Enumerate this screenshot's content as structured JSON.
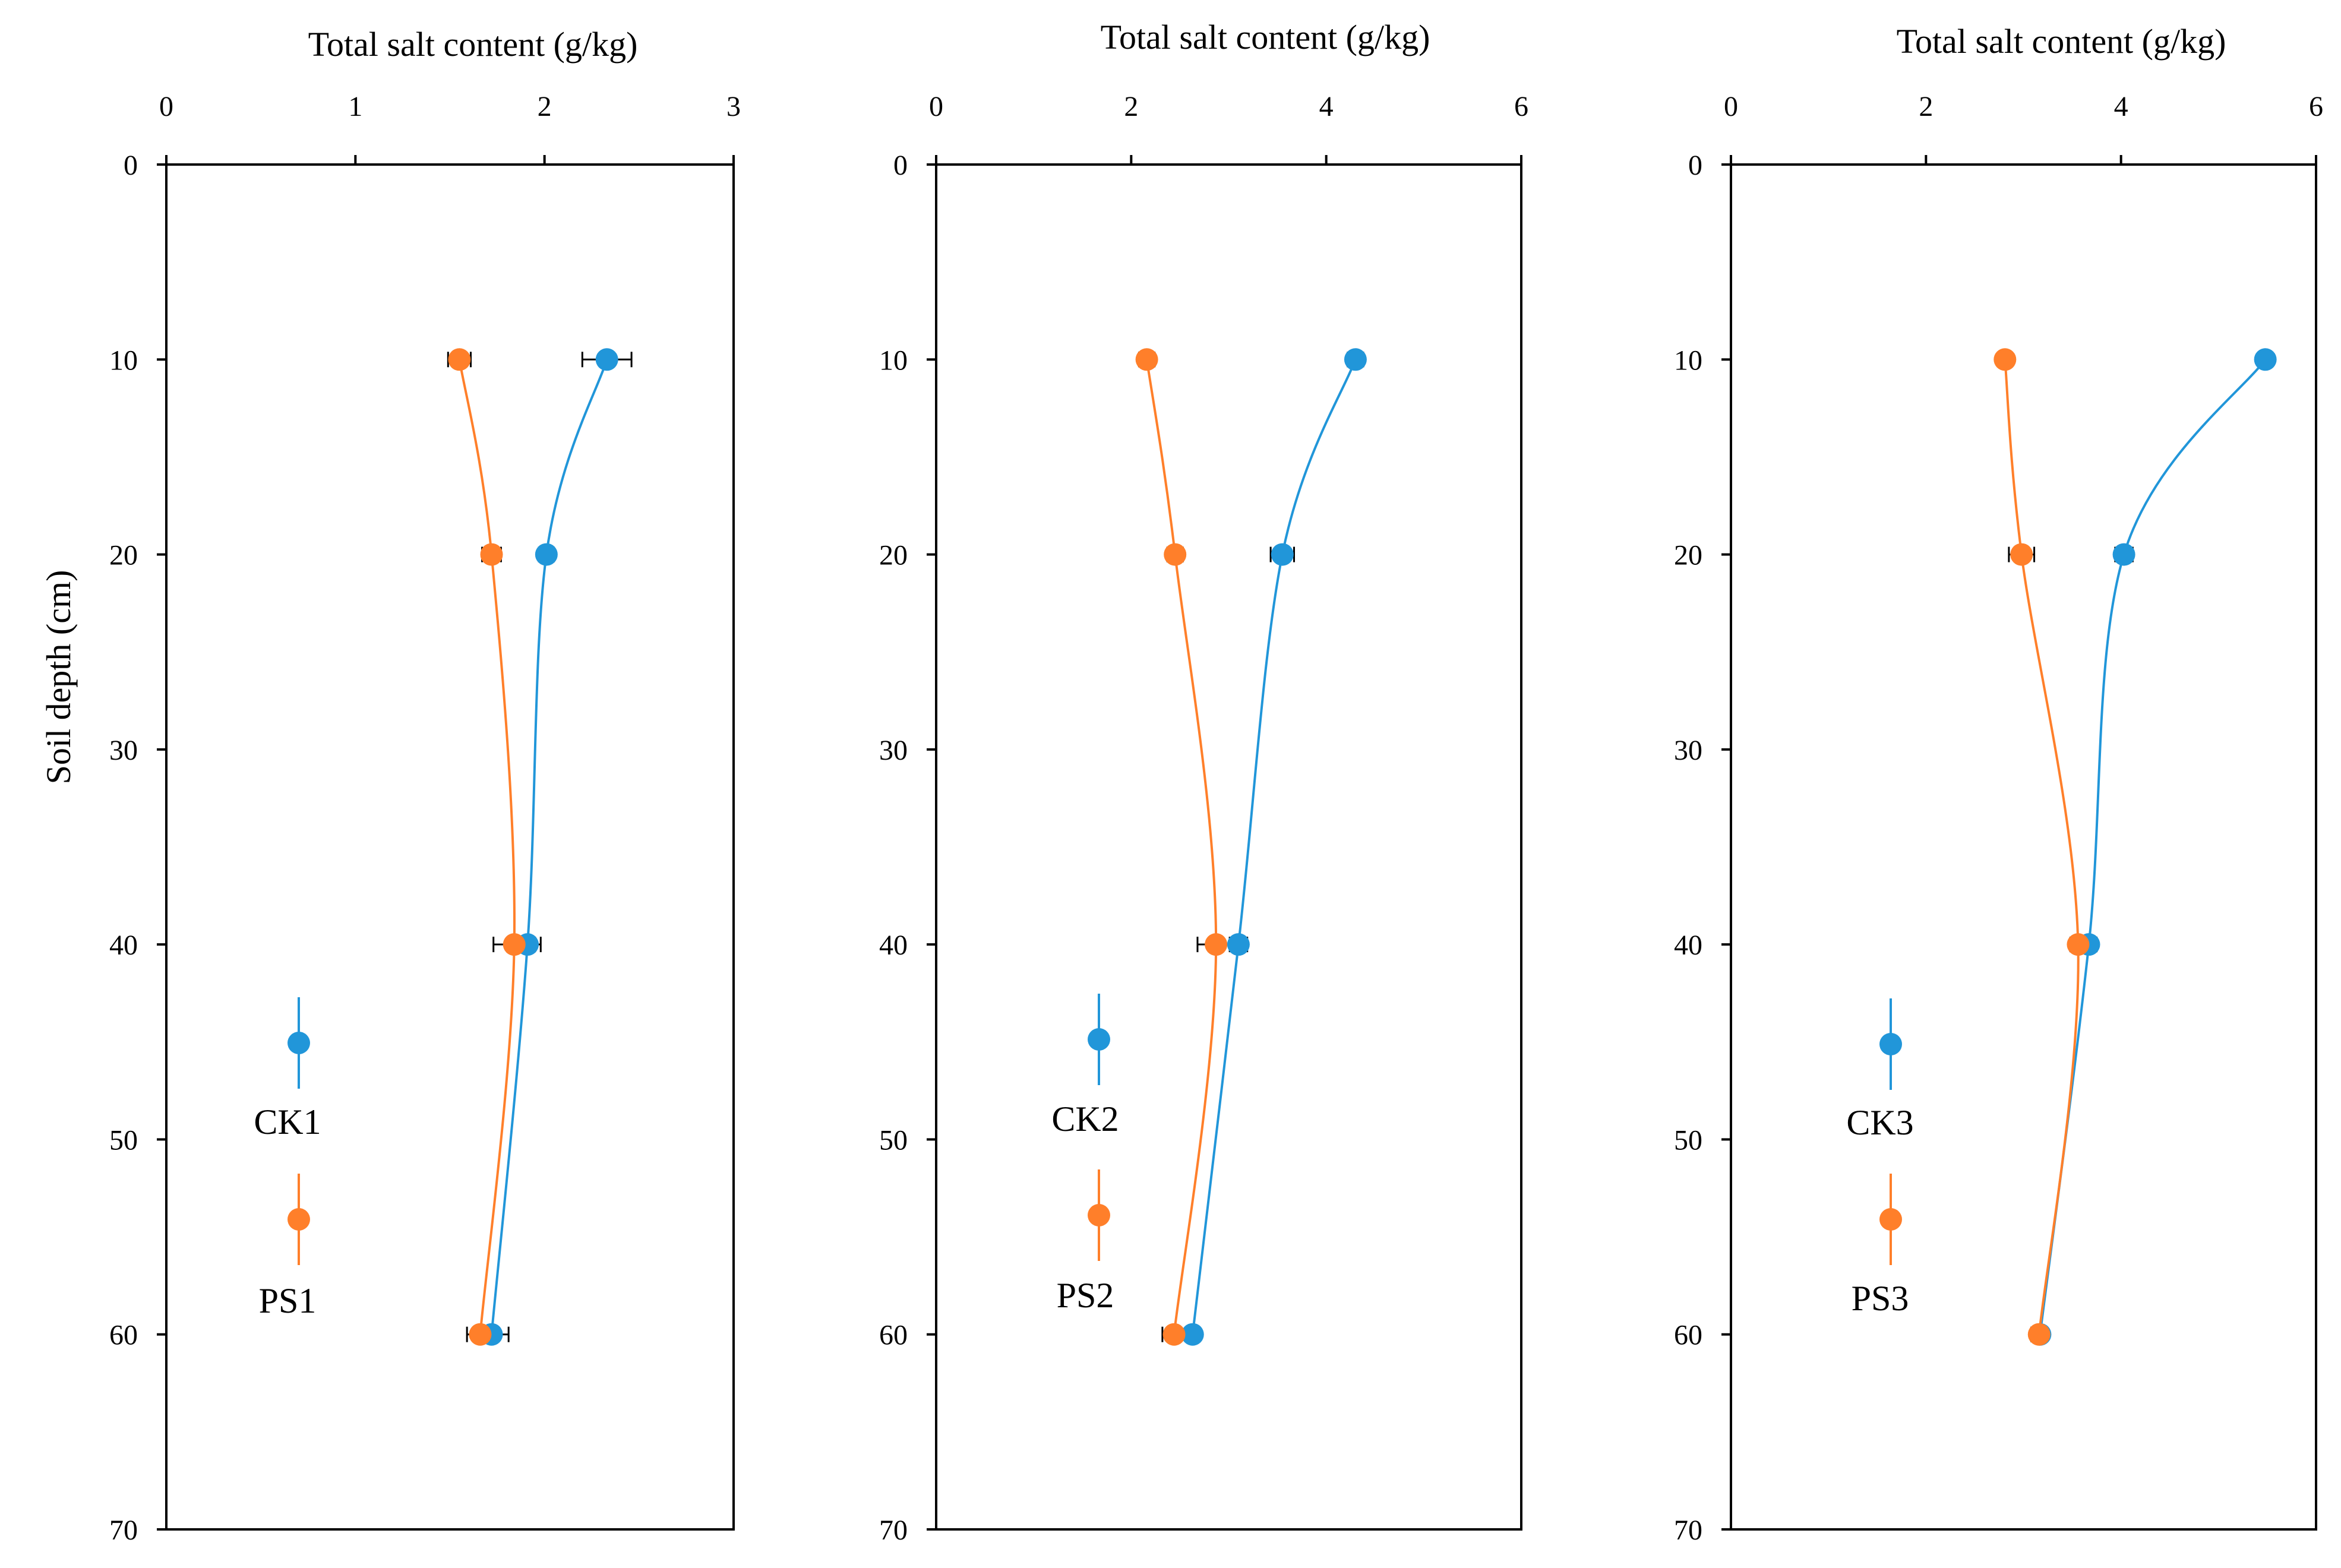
{
  "figure": {
    "y_axis_title": "Soil depth (cm)"
  },
  "colors": {
    "CK": "#2196d9",
    "PS": "#ff7f2a",
    "axis": "#000000",
    "errorbar": "#000000"
  },
  "chart_data": [
    {
      "type": "line",
      "title": "",
      "xlabel": "Total salt content (g/kg)",
      "ylabel": "Soil depth (cm)",
      "xlim": [
        0,
        3
      ],
      "ylim": [
        0,
        70
      ],
      "x_ticks": [
        "0",
        "1",
        "2",
        "3"
      ],
      "y_ticks": [
        "0",
        "10",
        "20",
        "30",
        "40",
        "50",
        "60",
        "70"
      ],
      "depths": [
        10,
        20,
        40,
        60
      ],
      "series": [
        {
          "name": "CK1",
          "key": "CK",
          "values": [
            2.33,
            2.01,
            1.91,
            1.72
          ],
          "errors": [
            0.13,
            0.04,
            0.07,
            0.09
          ]
        },
        {
          "name": "PS1",
          "key": "PS",
          "values": [
            1.55,
            1.72,
            1.84,
            1.66
          ],
          "errors": [
            0.06,
            0.05,
            0.11,
            0.07
          ]
        }
      ],
      "legend": [
        "CK1",
        "PS1"
      ],
      "legend_position": "bottom-left"
    },
    {
      "type": "line",
      "title": "",
      "xlabel": "Total salt content (g/kg)",
      "ylabel": "",
      "xlim": [
        0,
        6
      ],
      "ylim": [
        0,
        70
      ],
      "x_ticks": [
        "0",
        "2",
        "4",
        "6"
      ],
      "y_ticks": [
        "0",
        "10",
        "20",
        "30",
        "40",
        "50",
        "60",
        "70"
      ],
      "depths": [
        10,
        20,
        40,
        60
      ],
      "series": [
        {
          "name": "CK2",
          "key": "CK",
          "values": [
            4.3,
            3.55,
            3.1,
            2.63
          ],
          "errors": [
            0.08,
            0.12,
            0.09,
            0.06
          ]
        },
        {
          "name": "PS2",
          "key": "PS",
          "values": [
            2.16,
            2.45,
            2.87,
            2.44
          ],
          "errors": [
            0.08,
            0.08,
            0.19,
            0.12
          ]
        }
      ],
      "legend": [
        "CK2",
        "PS2"
      ],
      "legend_position": "bottom-left"
    },
    {
      "type": "line",
      "title": "",
      "xlabel": "Total salt content (g/kg)",
      "ylabel": "",
      "xlim": [
        0,
        6
      ],
      "ylim": [
        0,
        70
      ],
      "x_ticks": [
        "0",
        "2",
        "4",
        "6"
      ],
      "y_ticks": [
        "0",
        "10",
        "20",
        "30",
        "40",
        "50",
        "60",
        "70"
      ],
      "depths": [
        10,
        20,
        40,
        60
      ],
      "series": [
        {
          "name": "CK3",
          "key": "CK",
          "values": [
            5.48,
            4.03,
            3.67,
            3.17
          ],
          "errors": [
            0.07,
            0.09,
            0.08,
            0.06
          ]
        },
        {
          "name": "PS3",
          "key": "PS",
          "values": [
            2.81,
            2.98,
            3.56,
            3.16
          ],
          "errors": [
            0.07,
            0.13,
            0.08,
            0.08
          ]
        }
      ],
      "legend": [
        "CK3",
        "PS3"
      ],
      "legend_position": "bottom-left"
    }
  ]
}
